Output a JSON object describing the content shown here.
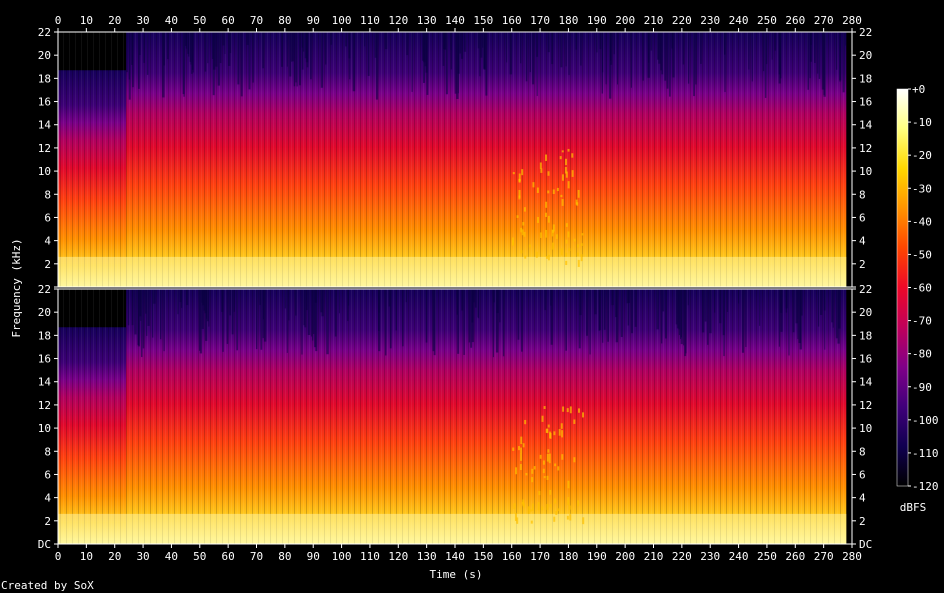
{
  "chart_data": {
    "type": "heatmap",
    "subtype": "spectrogram",
    "channels": 2,
    "xlabel": "Time (s)",
    "ylabel": "Frequency (kHz)",
    "xlim": [
      0,
      280
    ],
    "ylim_khz": [
      0,
      22
    ],
    "x_ticks": [
      "0",
      "10",
      "20",
      "30",
      "40",
      "50",
      "60",
      "70",
      "80",
      "90",
      "100",
      "110",
      "120",
      "130",
      "140",
      "150",
      "160",
      "170",
      "180",
      "190",
      "200",
      "210",
      "220",
      "230",
      "240",
      "250",
      "260",
      "270",
      "280"
    ],
    "y_ticks": [
      "DC",
      "2",
      "4",
      "6",
      "8",
      "10",
      "12",
      "14",
      "16",
      "18",
      "20",
      "22"
    ],
    "colorbar": {
      "label": "dBFS",
      "range": [
        -120,
        0
      ],
      "ticks": [
        "+0",
        "-10",
        "-20",
        "-30",
        "-40",
        "-50",
        "-60",
        "-70",
        "-80",
        "-90",
        "-100",
        "-110",
        "-120"
      ],
      "colors": [
        "#ffffff",
        "#ffff80",
        "#ffd800",
        "#ff9400",
        "#ff4600",
        "#ee0828",
        "#c0005a",
        "#800088",
        "#40007a",
        "#100050",
        "#000000"
      ]
    },
    "sections": [
      {
        "name": "quiet_intro",
        "time_s": [
          0,
          24
        ],
        "bandwidth_khz": 18.7,
        "top_khz": 22,
        "upper_band_level_db": -120
      },
      {
        "name": "full_band",
        "time_s": [
          24,
          278
        ],
        "bandwidth_khz": 22
      },
      {
        "name": "transient_region",
        "time_s": [
          160,
          185
        ]
      }
    ],
    "footer": "Created by SoX"
  }
}
